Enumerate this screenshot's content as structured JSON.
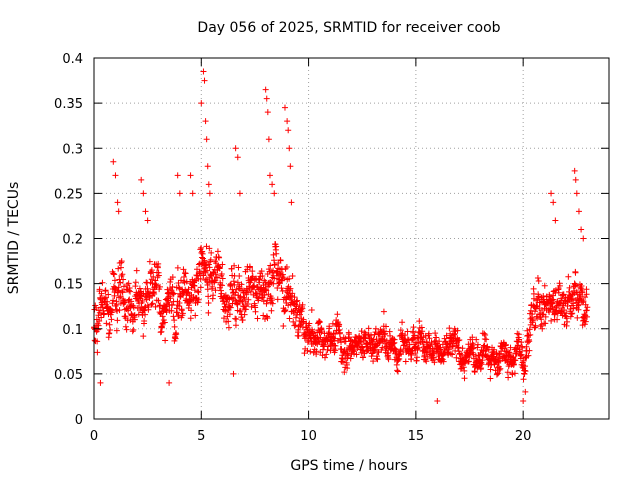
{
  "chart_data": {
    "type": "scatter",
    "title": "Day 056 of 2025, SRMTID for receiver coob",
    "xlabel": "GPS time / hours",
    "ylabel": "SRMTID / TECUs",
    "xlim": [
      0,
      24
    ],
    "ylim": [
      0,
      0.4
    ],
    "xticks": [
      0,
      5,
      10,
      15,
      20
    ],
    "xtick_labels": [
      "0",
      "5",
      "10",
      "15",
      "20"
    ],
    "yticks": [
      0,
      0.05,
      0.1,
      0.15,
      0.2,
      0.25,
      0.3,
      0.35,
      0.4
    ],
    "ytick_labels": [
      "0",
      "0.05",
      "0.1",
      "0.15",
      "0.2",
      "0.25",
      "0.3",
      "0.35",
      "0.4"
    ],
    "grid": true,
    "marker": "+",
    "series_color": "#ff0000",
    "envelope": {
      "x": [
        0.0,
        0.5,
        1.0,
        1.5,
        2.0,
        2.5,
        3.0,
        3.5,
        4.0,
        4.5,
        5.0,
        5.5,
        6.0,
        6.5,
        7.0,
        7.5,
        8.0,
        8.5,
        9.0,
        9.5,
        10.0,
        11.0,
        12.0,
        13.0,
        14.0,
        15.0,
        16.0,
        17.0,
        18.0,
        19.0,
        20.0,
        20.5,
        21.0,
        21.5,
        22.0,
        22.5,
        23.0
      ],
      "center": [
        0.1,
        0.13,
        0.15,
        0.14,
        0.15,
        0.14,
        0.14,
        0.13,
        0.14,
        0.15,
        0.16,
        0.17,
        0.15,
        0.13,
        0.15,
        0.14,
        0.14,
        0.15,
        0.14,
        0.11,
        0.1,
        0.09,
        0.085,
        0.09,
        0.085,
        0.09,
        0.08,
        0.075,
        0.075,
        0.07,
        0.07,
        0.12,
        0.13,
        0.13,
        0.12,
        0.13,
        0.12
      ],
      "spread": [
        0.04,
        0.05,
        0.06,
        0.05,
        0.05,
        0.05,
        0.05,
        0.05,
        0.05,
        0.05,
        0.06,
        0.05,
        0.05,
        0.05,
        0.05,
        0.05,
        0.05,
        0.06,
        0.05,
        0.04,
        0.035,
        0.03,
        0.03,
        0.03,
        0.03,
        0.03,
        0.03,
        0.03,
        0.03,
        0.03,
        0.03,
        0.04,
        0.04,
        0.04,
        0.04,
        0.04,
        0.04
      ]
    },
    "spikes": [
      {
        "x": 0.9,
        "y": 0.285
      },
      {
        "x": 1.0,
        "y": 0.27
      },
      {
        "x": 1.1,
        "y": 0.24
      },
      {
        "x": 1.15,
        "y": 0.23
      },
      {
        "x": 2.2,
        "y": 0.265
      },
      {
        "x": 2.3,
        "y": 0.25
      },
      {
        "x": 2.4,
        "y": 0.23
      },
      {
        "x": 2.5,
        "y": 0.22
      },
      {
        "x": 3.9,
        "y": 0.27
      },
      {
        "x": 4.0,
        "y": 0.25
      },
      {
        "x": 4.5,
        "y": 0.27
      },
      {
        "x": 4.6,
        "y": 0.25
      },
      {
        "x": 5.0,
        "y": 0.35
      },
      {
        "x": 5.1,
        "y": 0.385
      },
      {
        "x": 5.15,
        "y": 0.375
      },
      {
        "x": 5.2,
        "y": 0.33
      },
      {
        "x": 5.25,
        "y": 0.31
      },
      {
        "x": 5.3,
        "y": 0.28
      },
      {
        "x": 5.35,
        "y": 0.26
      },
      {
        "x": 5.4,
        "y": 0.25
      },
      {
        "x": 6.6,
        "y": 0.3
      },
      {
        "x": 6.7,
        "y": 0.29
      },
      {
        "x": 6.8,
        "y": 0.25
      },
      {
        "x": 8.0,
        "y": 0.365
      },
      {
        "x": 8.05,
        "y": 0.355
      },
      {
        "x": 8.1,
        "y": 0.34
      },
      {
        "x": 8.15,
        "y": 0.31
      },
      {
        "x": 8.2,
        "y": 0.27
      },
      {
        "x": 8.3,
        "y": 0.26
      },
      {
        "x": 8.4,
        "y": 0.25
      },
      {
        "x": 8.9,
        "y": 0.345
      },
      {
        "x": 9.0,
        "y": 0.33
      },
      {
        "x": 9.05,
        "y": 0.32
      },
      {
        "x": 9.1,
        "y": 0.3
      },
      {
        "x": 9.15,
        "y": 0.28
      },
      {
        "x": 9.2,
        "y": 0.24
      },
      {
        "x": 21.3,
        "y": 0.25
      },
      {
        "x": 21.4,
        "y": 0.24
      },
      {
        "x": 21.5,
        "y": 0.22
      },
      {
        "x": 22.4,
        "y": 0.275
      },
      {
        "x": 22.45,
        "y": 0.265
      },
      {
        "x": 22.5,
        "y": 0.25
      },
      {
        "x": 22.6,
        "y": 0.23
      },
      {
        "x": 22.7,
        "y": 0.21
      },
      {
        "x": 22.8,
        "y": 0.2
      },
      {
        "x": 0.3,
        "y": 0.04
      },
      {
        "x": 3.5,
        "y": 0.04
      },
      {
        "x": 6.5,
        "y": 0.05
      },
      {
        "x": 16.0,
        "y": 0.02
      },
      {
        "x": 20.0,
        "y": 0.02
      },
      {
        "x": 20.1,
        "y": 0.03
      }
    ],
    "sample_step_hours": 0.012
  }
}
